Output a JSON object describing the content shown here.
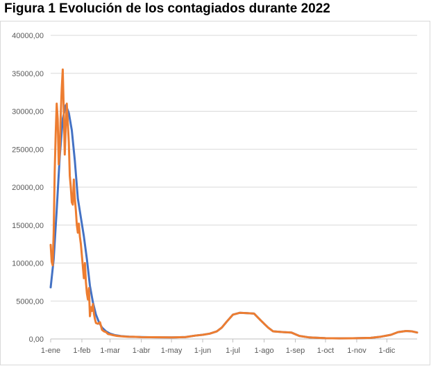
{
  "title": "Figura 1 Evolución de los contagiados durante 2022",
  "colors": {
    "series_smooth": "#4472c4",
    "series_daily": "#ed7d31",
    "grid": "#d9d9d9",
    "axis": "#bfbfbf",
    "text": "#595959"
  },
  "chart_data": {
    "type": "line",
    "title": "Figura 1 Evolución de los contagiados durante 2022",
    "xlabel": "",
    "ylabel": "",
    "x_axis": {
      "type": "date",
      "start": "2022-01-01",
      "end": "2022-12-31"
    },
    "ylim": [
      0,
      40000
    ],
    "grid": "horizontal",
    "legend": "none",
    "y_ticks": [
      {
        "value": 0,
        "label": "0,00"
      },
      {
        "value": 5000,
        "label": "5000,00"
      },
      {
        "value": 10000,
        "label": "10000,00"
      },
      {
        "value": 15000,
        "label": "15000,00"
      },
      {
        "value": 20000,
        "label": "20000,00"
      },
      {
        "value": 25000,
        "label": "25000,00"
      },
      {
        "value": 30000,
        "label": "30000,00"
      },
      {
        "value": 35000,
        "label": "35000,00"
      },
      {
        "value": 40000,
        "label": "40000,00"
      }
    ],
    "x_ticks": [
      {
        "date": "2022-01-01",
        "label": "1-ene"
      },
      {
        "date": "2022-02-01",
        "label": "1-feb"
      },
      {
        "date": "2022-03-01",
        "label": "1-mar"
      },
      {
        "date": "2022-04-01",
        "label": "1-abr"
      },
      {
        "date": "2022-05-01",
        "label": "1-may"
      },
      {
        "date": "2022-06-01",
        "label": "1-jun"
      },
      {
        "date": "2022-07-01",
        "label": "1-jul"
      },
      {
        "date": "2022-08-01",
        "label": "1-ago"
      },
      {
        "date": "2022-09-01",
        "label": "1-sep"
      },
      {
        "date": "2022-10-01",
        "label": "1-oct"
      },
      {
        "date": "2022-11-01",
        "label": "1-nov"
      },
      {
        "date": "2022-12-01",
        "label": "1-dic"
      }
    ],
    "series": [
      {
        "color": "#4472c4",
        "points": [
          [
            "2022-01-01",
            6800
          ],
          [
            "2022-01-04",
            10500
          ],
          [
            "2022-01-07",
            17000
          ],
          [
            "2022-01-10",
            24000
          ],
          [
            "2022-01-13",
            29000
          ],
          [
            "2022-01-16",
            30800
          ],
          [
            "2022-01-19",
            29800
          ],
          [
            "2022-01-22",
            27500
          ],
          [
            "2022-01-25",
            23500
          ],
          [
            "2022-01-28",
            18500
          ],
          [
            "2022-01-31",
            16000
          ],
          [
            "2022-02-03",
            13500
          ],
          [
            "2022-02-06",
            10500
          ],
          [
            "2022-02-09",
            7000
          ],
          [
            "2022-02-12",
            4800
          ],
          [
            "2022-02-15",
            3200
          ],
          [
            "2022-02-18",
            2200
          ],
          [
            "2022-02-21",
            1500
          ],
          [
            "2022-02-25",
            1000
          ],
          [
            "2022-03-01",
            700
          ],
          [
            "2022-03-06",
            500
          ],
          [
            "2022-03-12",
            380
          ],
          [
            "2022-03-20",
            300
          ],
          [
            "2022-04-01",
            250
          ],
          [
            "2022-04-15",
            220
          ],
          [
            "2022-05-01",
            200
          ],
          [
            "2022-05-15",
            250
          ],
          [
            "2022-05-25",
            450
          ],
          [
            "2022-06-01",
            550
          ],
          [
            "2022-06-08",
            700
          ],
          [
            "2022-06-15",
            1000
          ],
          [
            "2022-06-20",
            1500
          ],
          [
            "2022-06-25",
            2300
          ],
          [
            "2022-07-01",
            3200
          ],
          [
            "2022-07-08",
            3450
          ],
          [
            "2022-07-15",
            3400
          ],
          [
            "2022-07-22",
            3350
          ],
          [
            "2022-07-29",
            2400
          ],
          [
            "2022-08-05",
            1500
          ],
          [
            "2022-08-10",
            1000
          ],
          [
            "2022-08-20",
            900
          ],
          [
            "2022-08-28",
            850
          ],
          [
            "2022-09-05",
            400
          ],
          [
            "2022-09-15",
            200
          ],
          [
            "2022-10-01",
            100
          ],
          [
            "2022-10-15",
            80
          ],
          [
            "2022-11-01",
            100
          ],
          [
            "2022-11-15",
            150
          ],
          [
            "2022-11-25",
            300
          ],
          [
            "2022-12-05",
            550
          ],
          [
            "2022-12-12",
            900
          ],
          [
            "2022-12-20",
            1050
          ],
          [
            "2022-12-26",
            1000
          ],
          [
            "2022-12-31",
            850
          ]
        ]
      },
      {
        "color": "#ed7d31",
        "points": [
          [
            "2022-01-01",
            12400
          ],
          [
            "2022-01-02",
            10200
          ],
          [
            "2022-01-03",
            9700
          ],
          [
            "2022-01-04",
            14000
          ],
          [
            "2022-01-05",
            22000
          ],
          [
            "2022-01-06",
            27000
          ],
          [
            "2022-01-07",
            31000
          ],
          [
            "2022-01-08",
            29000
          ],
          [
            "2022-01-09",
            23000
          ],
          [
            "2022-01-10",
            24500
          ],
          [
            "2022-01-11",
            29500
          ],
          [
            "2022-01-12",
            33000
          ],
          [
            "2022-01-13",
            35500
          ],
          [
            "2022-01-14",
            30000
          ],
          [
            "2022-01-15",
            24300
          ],
          [
            "2022-01-16",
            28000
          ],
          [
            "2022-01-17",
            31000
          ],
          [
            "2022-01-18",
            28500
          ],
          [
            "2022-01-19",
            26000
          ],
          [
            "2022-01-20",
            21500
          ],
          [
            "2022-01-21",
            20000
          ],
          [
            "2022-01-22",
            18000
          ],
          [
            "2022-01-23",
            17700
          ],
          [
            "2022-01-24",
            21000
          ],
          [
            "2022-01-25",
            18500
          ],
          [
            "2022-01-26",
            17000
          ],
          [
            "2022-01-27",
            15000
          ],
          [
            "2022-01-28",
            14000
          ],
          [
            "2022-01-29",
            15200
          ],
          [
            "2022-01-30",
            13500
          ],
          [
            "2022-01-31",
            12500
          ],
          [
            "2022-02-01",
            11000
          ],
          [
            "2022-02-02",
            9500
          ],
          [
            "2022-02-03",
            8000
          ],
          [
            "2022-02-04",
            10000
          ],
          [
            "2022-02-05",
            7500
          ],
          [
            "2022-02-06",
            6000
          ],
          [
            "2022-02-07",
            5200
          ],
          [
            "2022-02-08",
            6700
          ],
          [
            "2022-02-09",
            3000
          ],
          [
            "2022-02-10",
            4200
          ],
          [
            "2022-02-11",
            3700
          ],
          [
            "2022-02-12",
            4600
          ],
          [
            "2022-02-13",
            3300
          ],
          [
            "2022-02-14",
            2600
          ],
          [
            "2022-02-15",
            2100
          ],
          [
            "2022-02-17",
            2000
          ],
          [
            "2022-02-19",
            2200
          ],
          [
            "2022-02-21",
            1200
          ],
          [
            "2022-02-23",
            1000
          ],
          [
            "2022-02-25",
            900
          ],
          [
            "2022-02-27",
            650
          ],
          [
            "2022-03-01",
            600
          ],
          [
            "2022-03-04",
            500
          ],
          [
            "2022-03-08",
            400
          ],
          [
            "2022-03-12",
            350
          ],
          [
            "2022-03-18",
            300
          ],
          [
            "2022-03-25",
            280
          ],
          [
            "2022-04-01",
            240
          ],
          [
            "2022-04-15",
            230
          ],
          [
            "2022-05-01",
            200
          ],
          [
            "2022-05-15",
            250
          ],
          [
            "2022-05-25",
            450
          ],
          [
            "2022-06-01",
            550
          ],
          [
            "2022-06-08",
            700
          ],
          [
            "2022-06-15",
            1000
          ],
          [
            "2022-06-20",
            1500
          ],
          [
            "2022-06-25",
            2300
          ],
          [
            "2022-07-01",
            3200
          ],
          [
            "2022-07-08",
            3450
          ],
          [
            "2022-07-15",
            3400
          ],
          [
            "2022-07-22",
            3350
          ],
          [
            "2022-07-29",
            2400
          ],
          [
            "2022-08-05",
            1500
          ],
          [
            "2022-08-10",
            1000
          ],
          [
            "2022-08-20",
            900
          ],
          [
            "2022-08-28",
            850
          ],
          [
            "2022-09-05",
            400
          ],
          [
            "2022-09-15",
            200
          ],
          [
            "2022-10-01",
            100
          ],
          [
            "2022-10-15",
            80
          ],
          [
            "2022-11-01",
            100
          ],
          [
            "2022-11-15",
            150
          ],
          [
            "2022-11-25",
            300
          ],
          [
            "2022-12-05",
            550
          ],
          [
            "2022-12-12",
            900
          ],
          [
            "2022-12-20",
            1050
          ],
          [
            "2022-12-26",
            1000
          ],
          [
            "2022-12-31",
            850
          ]
        ]
      }
    ]
  }
}
